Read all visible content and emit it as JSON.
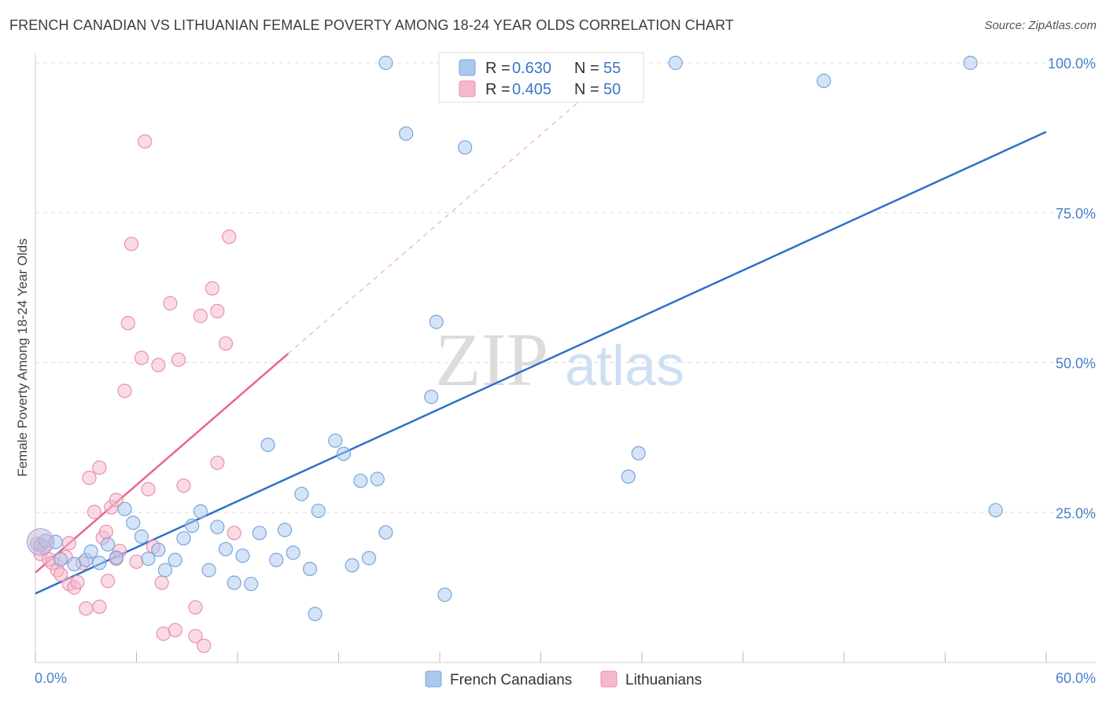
{
  "title": "FRENCH CANADIAN VS LITHUANIAN FEMALE POVERTY AMONG 18-24 YEAR OLDS CORRELATION CHART",
  "source": "Source: ZipAtlas.com",
  "watermark": {
    "part1": "ZIP",
    "part2": "atlas"
  },
  "colors": {
    "blue_fill": "#aac8ee",
    "blue_stroke": "#7aa6dc",
    "blue_line": "#2d72c8",
    "pink_fill": "#f6b8cb",
    "pink_stroke": "#ea8fab",
    "pink_line": "#e8648f",
    "grid": "#dddddd",
    "tick_text": "#4a7fc9"
  },
  "legend": {
    "r_label": "R =",
    "n_label": "N =",
    "rows": [
      {
        "r": "0.630",
        "n": "55"
      },
      {
        "r": "0.405",
        "n": "50"
      }
    ]
  },
  "chart_data": {
    "type": "scatter",
    "title": "FRENCH CANADIAN VS LITHUANIAN FEMALE POVERTY AMONG 18-24 YEAR OLDS CORRELATION CHART",
    "xlabel": "",
    "ylabel": "Female Poverty Among 18-24 Year Olds",
    "xlim": [
      0,
      60
    ],
    "ylim": [
      0,
      100
    ],
    "x_tick_labels": [
      "0.0%",
      "60.0%"
    ],
    "y_ticks": [
      25,
      50,
      75,
      100
    ],
    "y_tick_labels": [
      "25.0%",
      "50.0%",
      "75.0%",
      "100.0%"
    ],
    "grid": true,
    "legend_position": "top-center",
    "series": [
      {
        "name": "French Canadians",
        "r": 0.63,
        "n": 55,
        "trend": {
          "x": [
            0,
            60
          ],
          "y": [
            11.5,
            88.5
          ]
        },
        "points": [
          [
            0.3,
            19.6
          ],
          [
            0.6,
            20.3
          ],
          [
            1.2,
            20.1
          ],
          [
            1.5,
            17.2
          ],
          [
            2.3,
            16.4
          ],
          [
            3.0,
            17.1
          ],
          [
            3.3,
            18.5
          ],
          [
            3.8,
            16.6
          ],
          [
            4.3,
            19.7
          ],
          [
            4.8,
            17.5
          ],
          [
            5.3,
            25.6
          ],
          [
            5.8,
            23.3
          ],
          [
            6.3,
            21.0
          ],
          [
            6.7,
            17.3
          ],
          [
            7.3,
            18.8
          ],
          [
            7.7,
            15.4
          ],
          [
            8.3,
            17.1
          ],
          [
            8.8,
            20.7
          ],
          [
            9.3,
            22.8
          ],
          [
            9.8,
            25.2
          ],
          [
            10.3,
            15.4
          ],
          [
            10.8,
            22.6
          ],
          [
            11.3,
            18.9
          ],
          [
            11.8,
            13.3
          ],
          [
            12.3,
            17.8
          ],
          [
            12.8,
            13.1
          ],
          [
            13.3,
            21.6
          ],
          [
            13.8,
            36.3
          ],
          [
            14.3,
            17.1
          ],
          [
            14.8,
            22.1
          ],
          [
            15.3,
            18.3
          ],
          [
            15.8,
            28.1
          ],
          [
            16.3,
            15.6
          ],
          [
            16.6,
            8.1
          ],
          [
            16.8,
            25.3
          ],
          [
            17.8,
            37.0
          ],
          [
            18.3,
            34.8
          ],
          [
            18.8,
            16.2
          ],
          [
            19.3,
            30.3
          ],
          [
            19.8,
            17.4
          ],
          [
            20.3,
            30.6
          ],
          [
            20.8,
            21.7
          ],
          [
            20.8,
            100.0
          ],
          [
            22.0,
            88.2
          ],
          [
            23.5,
            44.3
          ],
          [
            23.8,
            56.8
          ],
          [
            24.3,
            11.3
          ],
          [
            25.5,
            85.9
          ],
          [
            32.0,
            100.0
          ],
          [
            35.2,
            31.0
          ],
          [
            35.8,
            34.9
          ],
          [
            38.0,
            100.0
          ],
          [
            46.8,
            97.0
          ],
          [
            55.5,
            100.0
          ],
          [
            57.0,
            25.4
          ]
        ]
      },
      {
        "name": "Lithuanians",
        "r": 0.405,
        "n": 50,
        "trend": {
          "x": [
            0,
            15
          ],
          "y": [
            15.0,
            51.5
          ]
        },
        "trend_extension": {
          "x": [
            15,
            34.5
          ],
          "y": [
            51.5,
            99.0
          ]
        },
        "points": [
          [
            0.1,
            19.8
          ],
          [
            0.3,
            18.1
          ],
          [
            0.5,
            19.3
          ],
          [
            0.8,
            17.2
          ],
          [
            1.0,
            16.6
          ],
          [
            1.3,
            15.4
          ],
          [
            1.5,
            14.7
          ],
          [
            1.8,
            17.6
          ],
          [
            2.0,
            13.1
          ],
          [
            2.0,
            19.9
          ],
          [
            2.3,
            12.5
          ],
          [
            2.5,
            13.4
          ],
          [
            2.8,
            16.6
          ],
          [
            3.0,
            9.0
          ],
          [
            3.2,
            30.8
          ],
          [
            3.5,
            25.1
          ],
          [
            3.8,
            32.5
          ],
          [
            3.8,
            9.3
          ],
          [
            4.0,
            20.8
          ],
          [
            4.2,
            21.8
          ],
          [
            4.3,
            13.6
          ],
          [
            4.5,
            25.9
          ],
          [
            4.8,
            17.3
          ],
          [
            4.8,
            27.1
          ],
          [
            5.0,
            18.6
          ],
          [
            5.3,
            45.3
          ],
          [
            5.5,
            56.6
          ],
          [
            5.7,
            69.8
          ],
          [
            6.0,
            16.8
          ],
          [
            6.3,
            50.8
          ],
          [
            6.5,
            86.9
          ],
          [
            6.7,
            28.9
          ],
          [
            7.0,
            19.3
          ],
          [
            7.3,
            49.6
          ],
          [
            7.5,
            13.3
          ],
          [
            7.6,
            4.8
          ],
          [
            8.0,
            59.9
          ],
          [
            8.3,
            5.4
          ],
          [
            8.5,
            50.5
          ],
          [
            8.8,
            29.5
          ],
          [
            9.5,
            4.4
          ],
          [
            9.5,
            9.2
          ],
          [
            9.8,
            57.8
          ],
          [
            10.0,
            2.8
          ],
          [
            10.5,
            62.4
          ],
          [
            10.8,
            33.3
          ],
          [
            10.8,
            58.6
          ],
          [
            11.3,
            53.2
          ],
          [
            11.5,
            71.0
          ],
          [
            11.8,
            21.6
          ]
        ]
      }
    ]
  },
  "bottom_legend": [
    {
      "label": "French Canadians"
    },
    {
      "label": "Lithuanians"
    }
  ]
}
